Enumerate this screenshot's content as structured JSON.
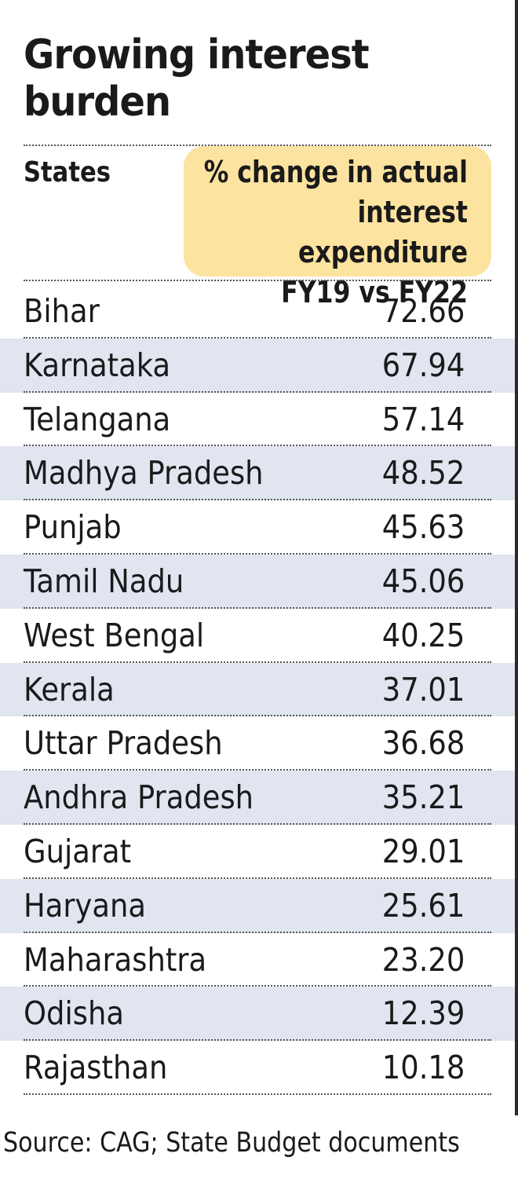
{
  "title": "Growing interest burden",
  "header": {
    "states_label": "States",
    "value_label_lines": [
      "% change in actual",
      "interest expenditure",
      "FY19 vs FY22"
    ]
  },
  "source": "Source: CAG; State Budget documents",
  "colors": {
    "header_highlight": "#fde3a0",
    "row_shade": "#e1e5f0",
    "text": "#1a1a1a"
  },
  "chart_data": {
    "type": "table",
    "title": "Growing interest burden",
    "columns": [
      "States",
      "% change in actual interest expenditure FY19 vs FY22"
    ],
    "categories": [
      "Bihar",
      "Karnataka",
      "Telangana",
      "Madhya Pradesh",
      "Punjab",
      "Tamil Nadu",
      "West Bengal",
      "Kerala",
      "Uttar Pradesh",
      "Andhra Pradesh",
      "Gujarat",
      "Haryana",
      "Maharashtra",
      "Odisha",
      "Rajasthan"
    ],
    "values": [
      "72.66",
      "67.94",
      "57.14",
      "48.52",
      "45.63",
      "45.06",
      "40.25",
      "37.01",
      "36.68",
      "35.21",
      "29.01",
      "25.61",
      "23.20",
      "12.39",
      "10.18"
    ]
  }
}
